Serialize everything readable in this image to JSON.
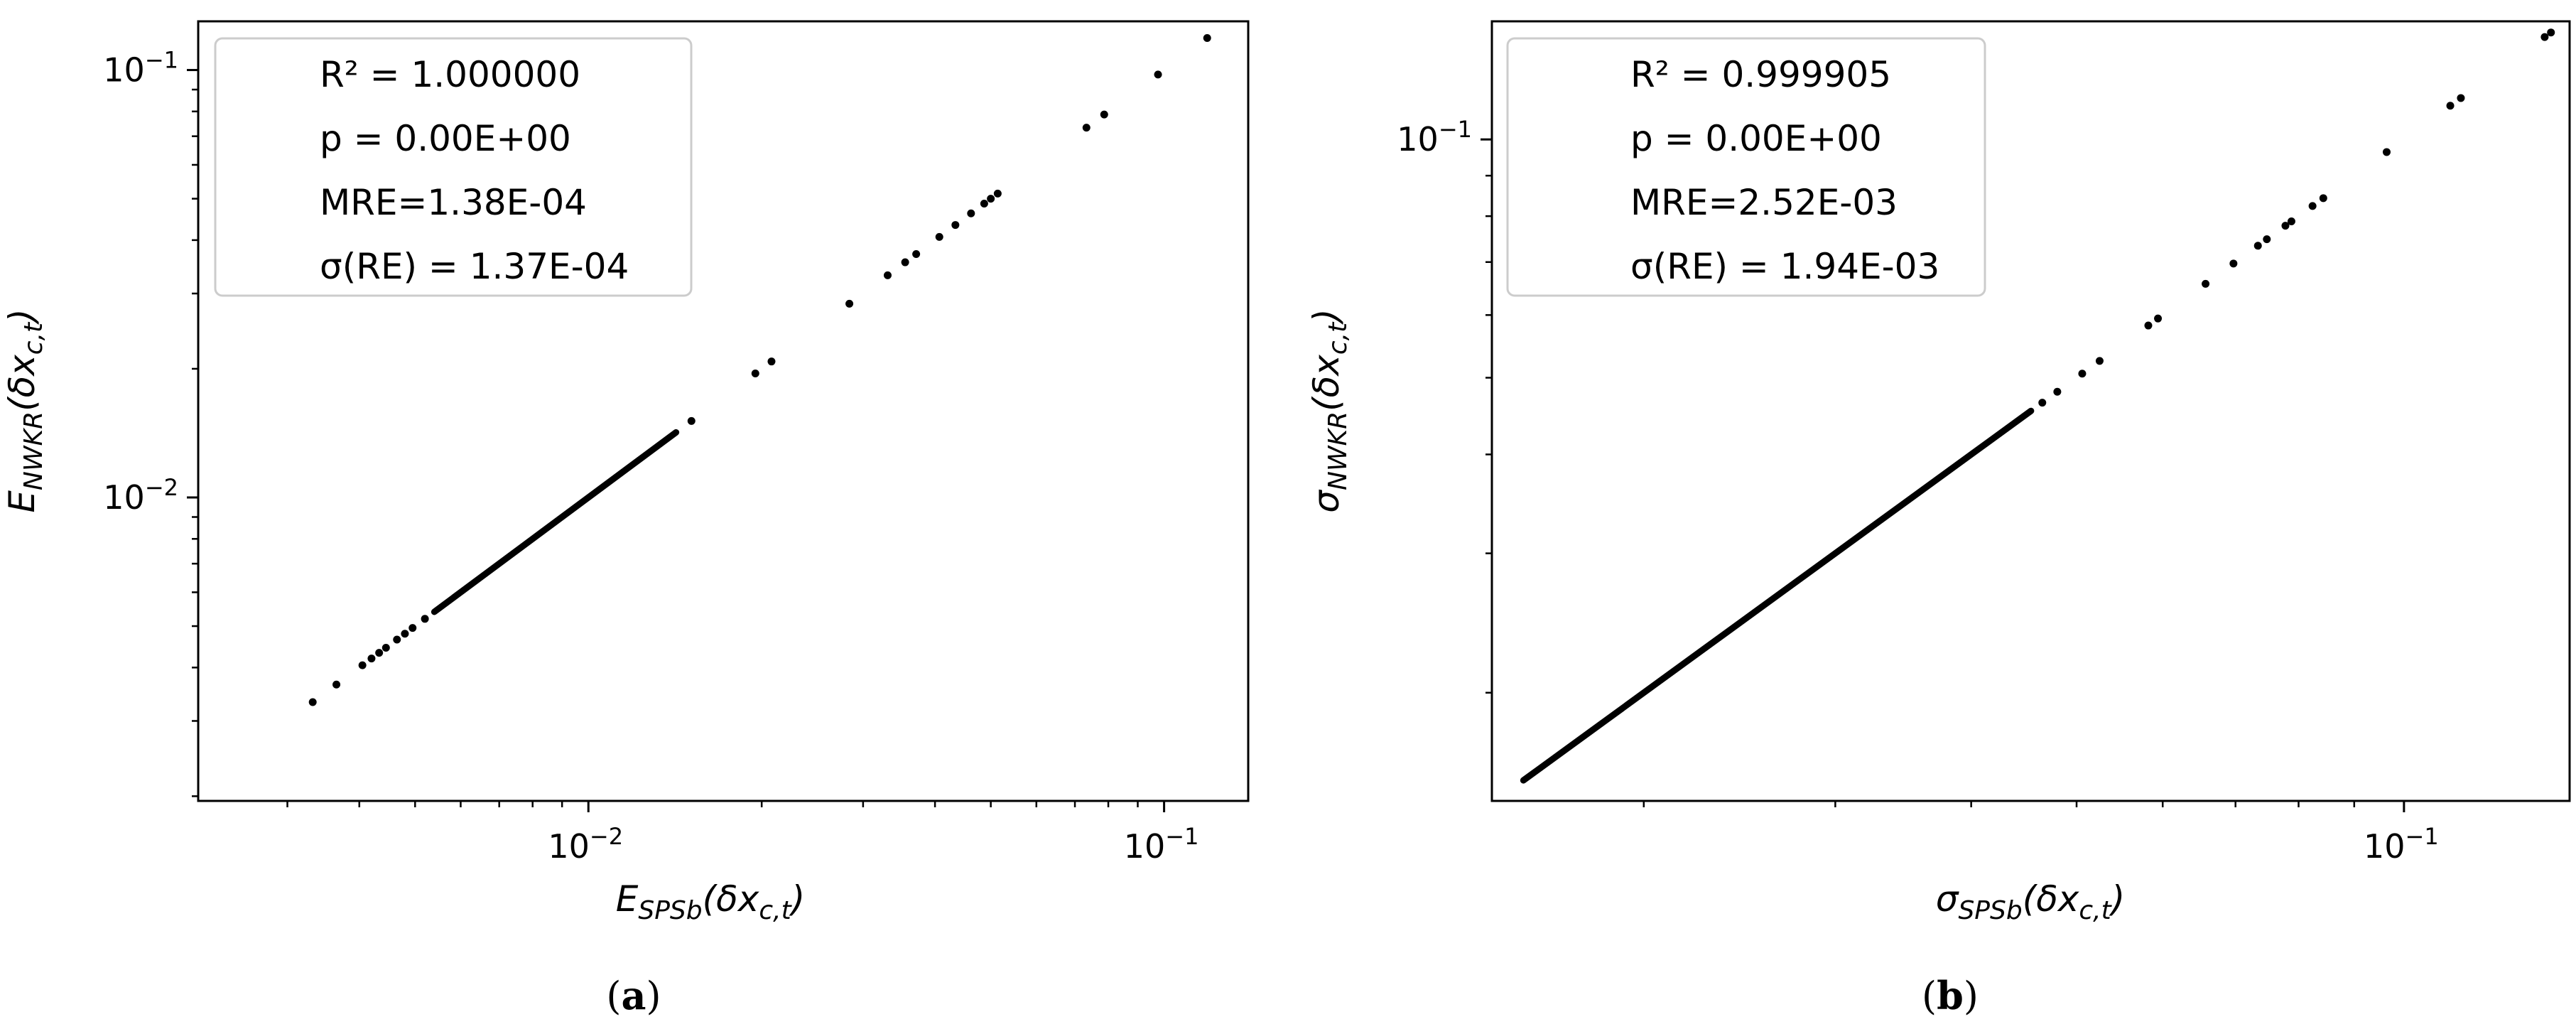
{
  "chart_data": [
    {
      "type": "scatter",
      "panel": "a",
      "caption_open": "(",
      "caption_letter": "a",
      "caption_close": ")",
      "xlabel": "E_{SPSb}(δx_{c,t})",
      "ylabel": "E_{NWKR}(δx_{c,t})",
      "xscale": "log",
      "yscale": "log",
      "xlim": [
        0.0021,
        0.14
      ],
      "ylim": [
        0.00195,
        0.13
      ],
      "xticks": [
        {
          "value": 0.01,
          "mant": "10",
          "exp": "−2"
        },
        {
          "value": 0.1,
          "mant": "10",
          "exp": "−1"
        }
      ],
      "yticks": [
        {
          "value": 0.01,
          "mant": "10",
          "exp": "−2"
        },
        {
          "value": 0.1,
          "mant": "10",
          "exp": "−1"
        }
      ],
      "stats": [
        "R² = 1.000000",
        "p = 0.00E+00",
        "MRE=1.38E-04",
        "σ(RE) = 1.37E-04"
      ],
      "line_segment": {
        "start": 0.0054,
        "end": 0.0142
      },
      "points": [
        [
          0.00332,
          0.00332
        ],
        [
          0.00365,
          0.00365
        ],
        [
          0.00405,
          0.00405
        ],
        [
          0.0042,
          0.0042
        ],
        [
          0.00433,
          0.00433
        ],
        [
          0.00445,
          0.00445
        ],
        [
          0.00465,
          0.00465
        ],
        [
          0.0048,
          0.0048
        ],
        [
          0.00495,
          0.00495
        ],
        [
          0.0052,
          0.0052
        ],
        [
          0.0151,
          0.0151
        ],
        [
          0.0195,
          0.0195
        ],
        [
          0.0208,
          0.0208
        ],
        [
          0.0284,
          0.0284
        ],
        [
          0.0331,
          0.0331
        ],
        [
          0.0355,
          0.0355
        ],
        [
          0.0371,
          0.0371
        ],
        [
          0.0407,
          0.0407
        ],
        [
          0.0434,
          0.0434
        ],
        [
          0.0462,
          0.0462
        ],
        [
          0.0487,
          0.0487
        ],
        [
          0.05,
          0.05
        ],
        [
          0.0514,
          0.0514
        ],
        [
          0.0733,
          0.0733
        ],
        [
          0.0787,
          0.0787
        ],
        [
          0.0976,
          0.0976
        ],
        [
          0.1188,
          0.1188
        ]
      ]
    },
    {
      "type": "scatter",
      "panel": "b",
      "caption_open": "(",
      "caption_letter": "b",
      "caption_close": ")",
      "xlabel": "σ_{SPSb}(δx_{c,t})",
      "ylabel": "σ_{NWKR}(δx_{c,t})",
      "xscale": "log",
      "yscale": "log",
      "xlim": [
        0.0145,
        0.142
      ],
      "ylim": [
        0.0146,
        0.141
      ],
      "xticks": [
        {
          "value": 0.1,
          "mant": "10",
          "exp": "−1"
        }
      ],
      "yticks": [
        {
          "value": 0.1,
          "mant": "10",
          "exp": "−1"
        }
      ],
      "stats": [
        "R² = 0.999905",
        "p = 0.00E+00",
        "MRE=2.52E-03",
        "σ(RE) = 1.94E-03"
      ],
      "line_segment": {
        "start": 0.0155,
        "end": 0.0454
      },
      "points": [
        [
          0.0465,
          0.0465
        ],
        [
          0.048,
          0.048
        ],
        [
          0.0506,
          0.0506
        ],
        [
          0.0525,
          0.0525
        ],
        [
          0.0582,
          0.0582
        ],
        [
          0.0594,
          0.0594
        ],
        [
          0.0657,
          0.0657
        ],
        [
          0.0697,
          0.0697
        ],
        [
          0.0734,
          0.0734
        ],
        [
          0.0748,
          0.0748
        ],
        [
          0.0778,
          0.0778
        ],
        [
          0.0788,
          0.0788
        ],
        [
          0.0824,
          0.0824
        ],
        [
          0.0843,
          0.0843
        ],
        [
          0.0964,
          0.0964
        ],
        [
          0.1103,
          0.1103
        ],
        [
          0.1128,
          0.1128
        ],
        [
          0.1347,
          0.1347
        ],
        [
          0.1365,
          0.1365
        ]
      ]
    }
  ]
}
